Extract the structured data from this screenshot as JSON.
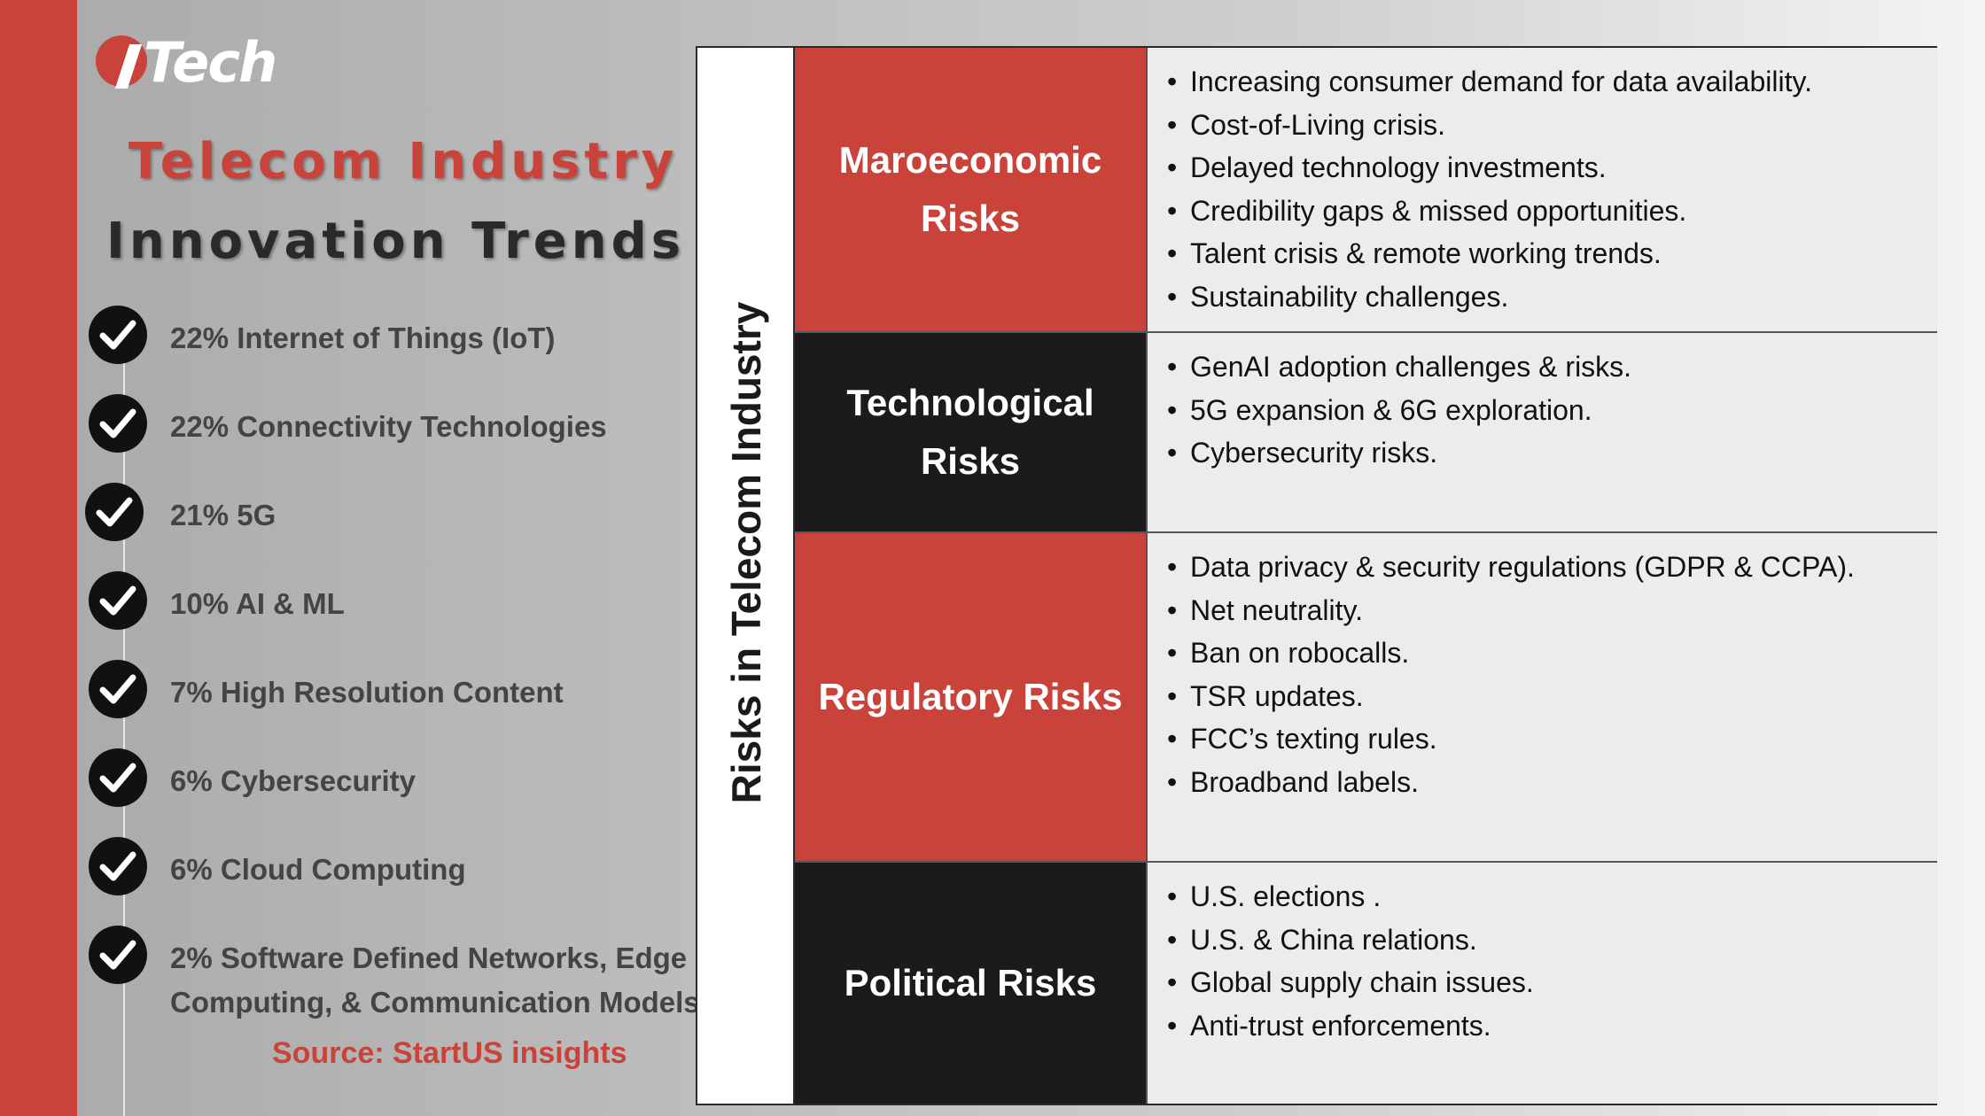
{
  "brand": {
    "logo_text": "Tech"
  },
  "title": {
    "line1": "Telecom Industry",
    "line2": "Innovation Trends"
  },
  "trends": [
    {
      "label": "22% Internet of Things (IoT)"
    },
    {
      "label": "22% Connectivity Technologies"
    },
    {
      "label": "21% 5G"
    },
    {
      "label": "10% AI & ML"
    },
    {
      "label": "7% High Resolution Content"
    },
    {
      "label": "6% Cybersecurity"
    },
    {
      "label": "6% Cloud Computing"
    },
    {
      "label": "2% Software Defined Networks,  Edge Computing, & Communication Models"
    }
  ],
  "source": "Source:  StartUS insights",
  "risks": {
    "vertical_title": "Risks in Telecom Industry",
    "rows": [
      {
        "category": "Maroeconomic Risks",
        "style": "red",
        "items": [
          "Increasing consumer demand for data availability.",
          "Cost-of-Living crisis.",
          "Delayed technology investments.",
          "Credibility gaps & missed opportunities.",
          "Talent crisis & remote working trends.",
          "Sustainability challenges."
        ]
      },
      {
        "category": "Technological Risks",
        "style": "dark",
        "items": [
          "GenAI adoption challenges & risks.",
          "5G expansion & 6G exploration.",
          "Cybersecurity risks."
        ]
      },
      {
        "category": "Regulatory Risks",
        "style": "red",
        "items": [
          "Data privacy & security regulations (GDPR & CCPA).",
          "Net neutrality.",
          "Ban on robocalls.",
          "TSR updates.",
          "FCC’s texting rules.",
          "Broadband labels."
        ]
      },
      {
        "category": "Political Risks",
        "style": "dark",
        "items": [
          "U.S. elections .",
          "U.S. & China relations.",
          "Global supply chain issues.",
          "Anti-trust enforcements."
        ]
      }
    ]
  },
  "colors": {
    "accent_red": "#c9433a",
    "dark": "#1b1b1d",
    "check_icon": "check-circle-icon"
  }
}
